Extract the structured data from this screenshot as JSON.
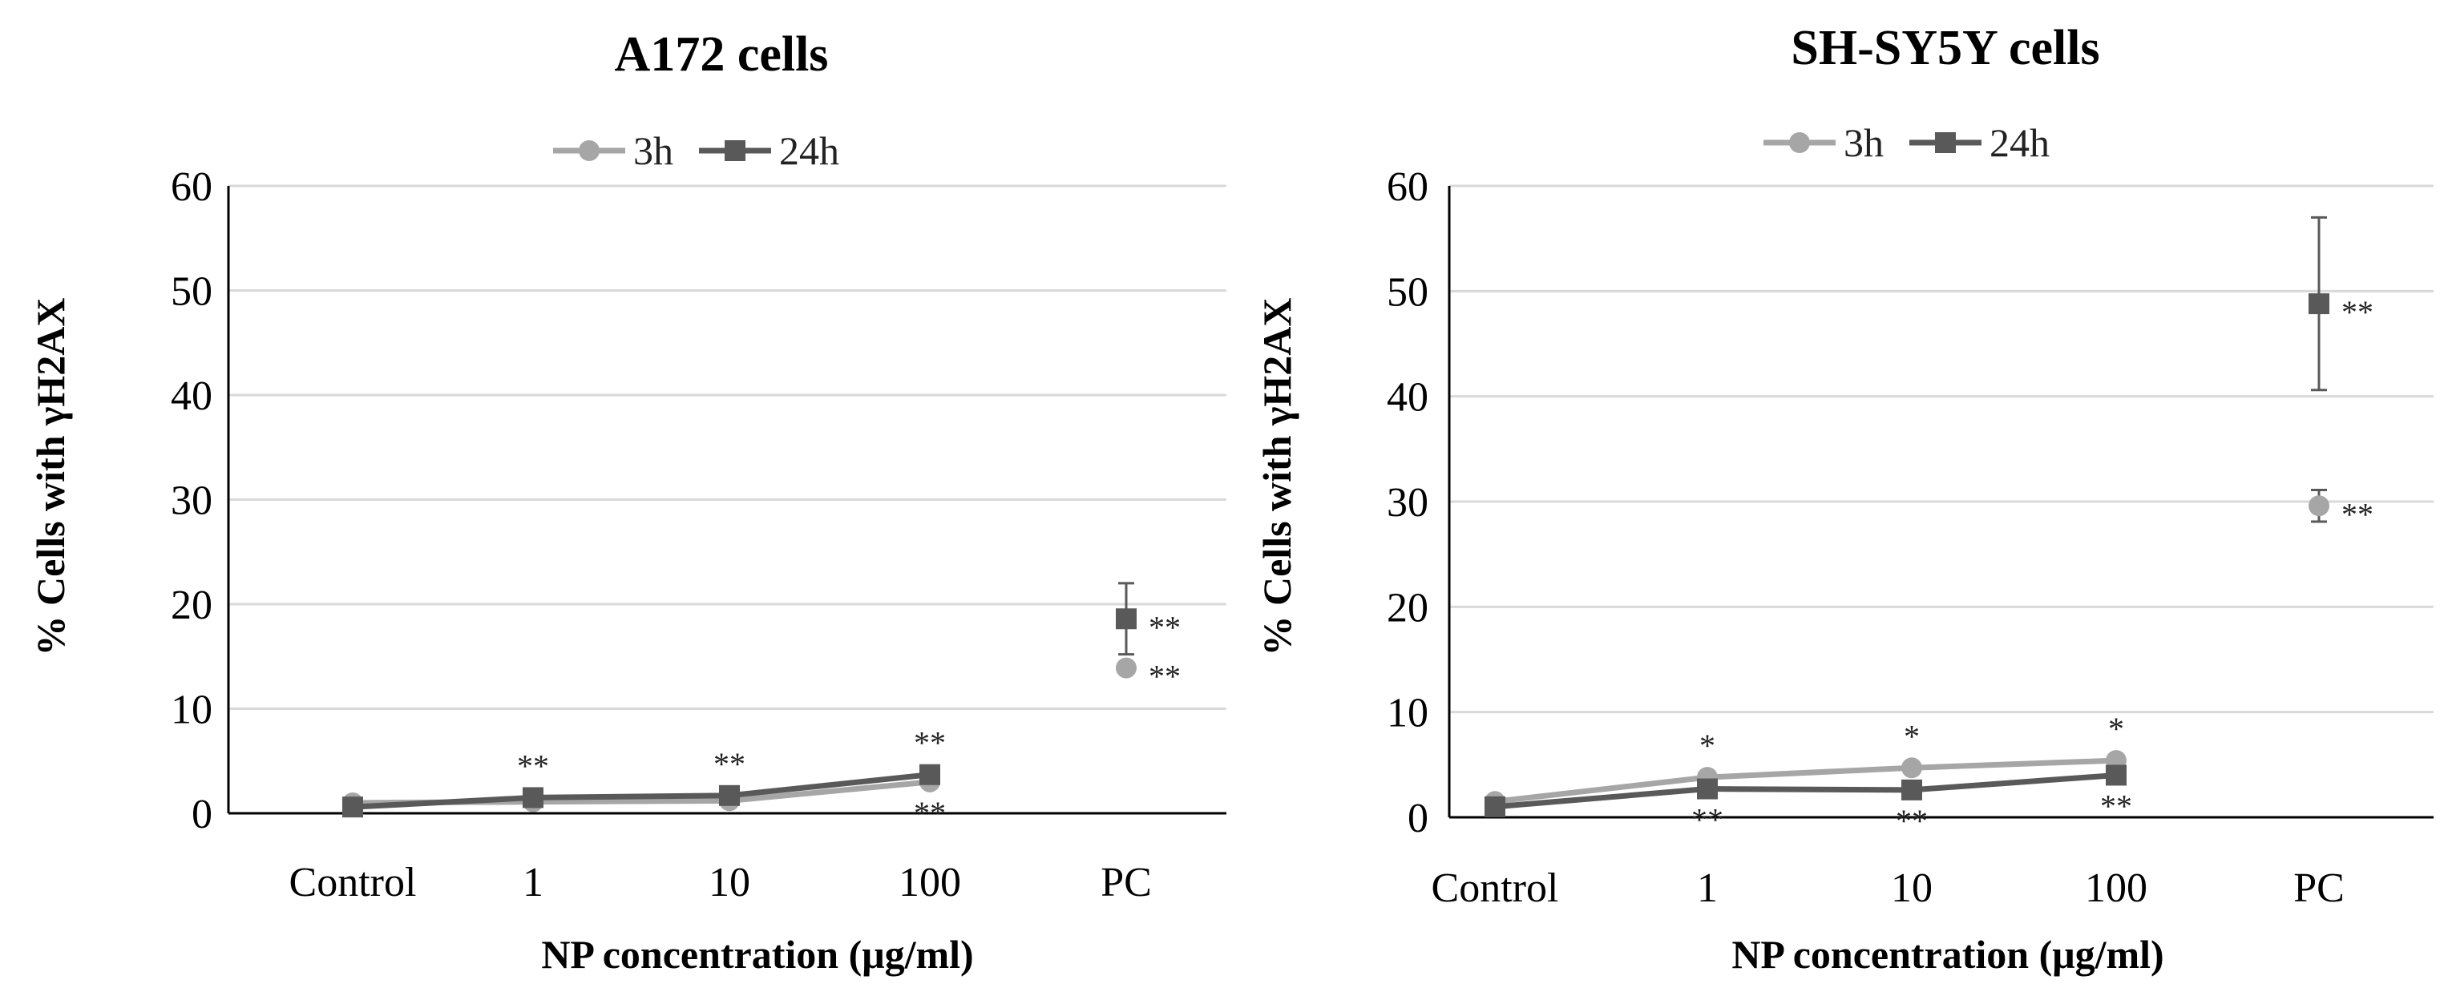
{
  "chart_data": [
    {
      "type": "line",
      "title": "A172 cells",
      "xlabel": "NP concentration (μg/ml)",
      "ylabel": "% Cells with γH2AX",
      "categories": [
        "Control",
        "1",
        "10",
        "100",
        "PC"
      ],
      "ylim": [
        0,
        60
      ],
      "yticks": [
        0,
        10,
        20,
        30,
        40,
        50,
        60
      ],
      "grid": true,
      "legend_position": "top-center",
      "series": [
        {
          "name": "3h",
          "marker": "circle",
          "color": "#a6a6a6",
          "values": [
            1.0,
            1.1,
            1.2,
            3.0,
            13.9
          ],
          "error": [
            0,
            0,
            0,
            0,
            0
          ],
          "sig_labels": [
            "",
            "",
            "",
            "**",
            "**"
          ],
          "sig_position": [
            "",
            "",
            "",
            "below",
            "right"
          ]
        },
        {
          "name": "24h",
          "marker": "square",
          "color": "#595959",
          "values": [
            0.6,
            1.5,
            1.7,
            3.7,
            18.6
          ],
          "error": [
            0,
            0,
            0,
            0,
            3.4
          ],
          "sig_labels": [
            "",
            "**",
            "**",
            "**",
            "**"
          ],
          "sig_position": [
            "",
            "above",
            "above",
            "above",
            "right"
          ]
        }
      ]
    },
    {
      "type": "line",
      "title": "SH-SY5Y cells",
      "xlabel": "NP concentration (μg/ml)",
      "ylabel": "% Cells with γH2AX",
      "categories": [
        "Control",
        "1",
        "10",
        "100",
        "PC"
      ],
      "ylim": [
        0,
        60
      ],
      "yticks": [
        0,
        10,
        20,
        30,
        40,
        50,
        60
      ],
      "grid": true,
      "legend_position": "top-center",
      "series": [
        {
          "name": "3h",
          "marker": "circle",
          "color": "#a6a6a6",
          "values": [
            1.5,
            3.8,
            4.7,
            5.4,
            29.6
          ],
          "error": [
            0,
            0,
            0,
            0,
            1.5
          ],
          "sig_labels": [
            "",
            "*",
            "*",
            "*",
            "**"
          ],
          "sig_position": [
            "",
            "above",
            "above",
            "above",
            "right"
          ]
        },
        {
          "name": "24h",
          "marker": "square",
          "color": "#595959",
          "values": [
            1.0,
            2.7,
            2.6,
            4.0,
            48.8
          ],
          "error": [
            0,
            0,
            0,
            0,
            8.2
          ],
          "sig_labels": [
            "",
            "**",
            "**",
            "**",
            "**"
          ],
          "sig_position": [
            "",
            "below",
            "below",
            "below",
            "right"
          ]
        }
      ]
    }
  ]
}
